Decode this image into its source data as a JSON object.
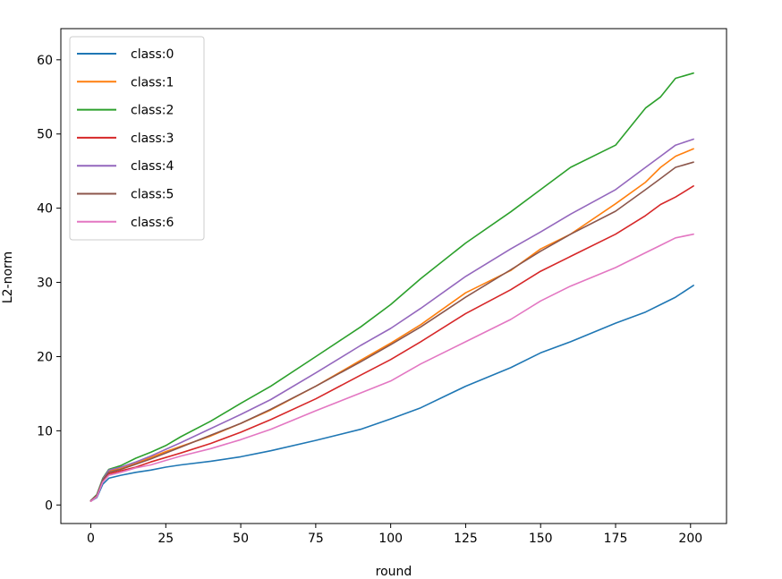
{
  "chart_data": {
    "type": "line",
    "title": "",
    "xlabel": "round",
    "ylabel": "L2-norm",
    "xlim": [
      -10,
      212
    ],
    "ylim": [
      -2.5,
      64.2
    ],
    "xticks": [
      0,
      25,
      50,
      75,
      100,
      125,
      150,
      175,
      200
    ],
    "yticks": [
      0,
      10,
      20,
      30,
      40,
      50,
      60
    ],
    "grid": false,
    "legend_position": "upper-left",
    "x": [
      0,
      2,
      4,
      6,
      10,
      15,
      20,
      25,
      30,
      40,
      50,
      60,
      75,
      90,
      100,
      110,
      125,
      140,
      150,
      160,
      175,
      185,
      190,
      195,
      201
    ],
    "series": [
      {
        "name": "class:0",
        "color": "#1f77b4",
        "values": [
          0.5,
          1.0,
          2.8,
          3.6,
          4.0,
          4.4,
          4.7,
          5.1,
          5.4,
          5.9,
          6.5,
          7.3,
          8.7,
          10.2,
          11.6,
          13.1,
          16.0,
          18.5,
          20.5,
          22.0,
          24.5,
          26.0,
          27.0,
          28.0,
          29.6
        ]
      },
      {
        "name": "class:1",
        "color": "#ff7f0e",
        "values": [
          0.6,
          1.3,
          3.4,
          4.6,
          4.9,
          5.6,
          6.4,
          7.2,
          7.9,
          9.3,
          11.0,
          12.8,
          16.0,
          19.5,
          21.8,
          24.3,
          28.6,
          31.6,
          34.5,
          36.5,
          40.6,
          43.5,
          45.5,
          47.0,
          48.0
        ]
      },
      {
        "name": "class:2",
        "color": "#2ca02c",
        "values": [
          0.6,
          1.4,
          3.6,
          4.8,
          5.3,
          6.3,
          7.1,
          8.0,
          9.2,
          11.3,
          13.7,
          16.0,
          20.0,
          24.0,
          27.0,
          30.5,
          35.3,
          39.5,
          42.5,
          45.5,
          48.5,
          53.5,
          55.0,
          57.5,
          58.2
        ]
      },
      {
        "name": "class:3",
        "color": "#d62728",
        "values": [
          0.5,
          1.2,
          3.3,
          4.2,
          4.6,
          5.1,
          5.8,
          6.4,
          7.0,
          8.3,
          9.8,
          11.5,
          14.3,
          17.5,
          19.6,
          22.0,
          25.8,
          29.0,
          31.5,
          33.5,
          36.5,
          39.0,
          40.5,
          41.5,
          43.0
        ]
      },
      {
        "name": "class:4",
        "color": "#9467bd",
        "values": [
          0.6,
          1.3,
          3.5,
          4.7,
          5.1,
          5.8,
          6.6,
          7.5,
          8.4,
          10.3,
          12.2,
          14.2,
          17.8,
          21.5,
          23.8,
          26.5,
          30.8,
          34.5,
          36.8,
          39.2,
          42.5,
          45.5,
          47.0,
          48.5,
          49.3
        ]
      },
      {
        "name": "class:5",
        "color": "#8c564b",
        "values": [
          0.6,
          1.3,
          3.4,
          4.4,
          4.8,
          5.5,
          6.2,
          7.0,
          7.8,
          9.4,
          11.0,
          12.9,
          16.0,
          19.3,
          21.6,
          24.0,
          28.0,
          31.7,
          34.2,
          36.5,
          39.6,
          42.5,
          44.0,
          45.5,
          46.2
        ]
      },
      {
        "name": "class:6",
        "color": "#e377c2",
        "values": [
          0.5,
          1.1,
          3.1,
          4.0,
          4.4,
          5.0,
          5.4,
          6.0,
          6.6,
          7.6,
          8.8,
          10.2,
          12.7,
          15.1,
          16.7,
          19.0,
          22.0,
          25.0,
          27.5,
          29.5,
          32.0,
          34.0,
          35.0,
          36.0,
          36.5
        ]
      }
    ]
  }
}
